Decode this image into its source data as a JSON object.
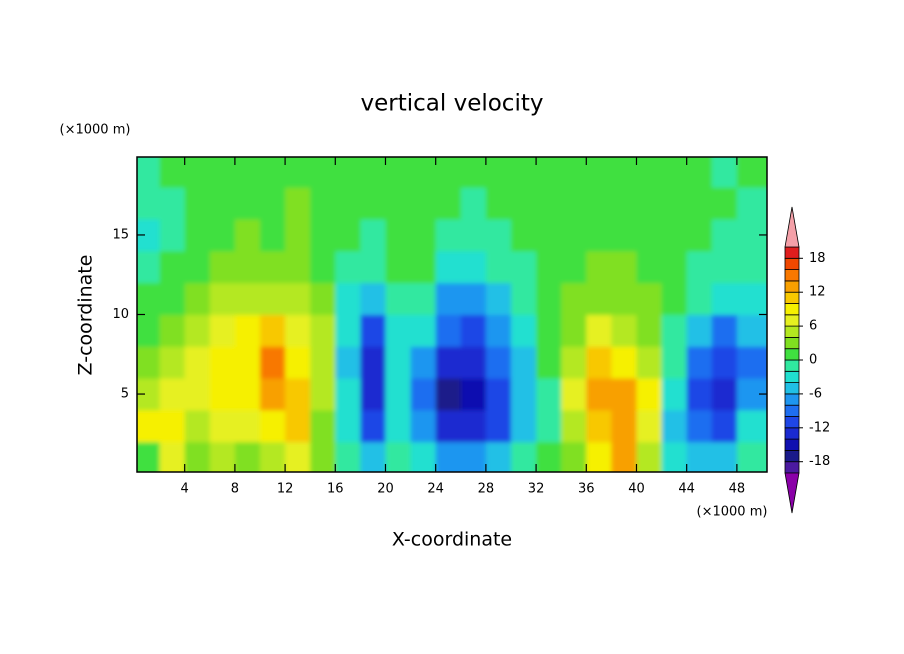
{
  "chart_data": {
    "type": "contour",
    "title": "vertical velocity",
    "xlabel": "X-coordinate",
    "ylabel": "Z-coordinate",
    "x_unit": "(×1000 m)",
    "y_unit": "(×1000 m)",
    "xlim": [
      0.2,
      50.4
    ],
    "ylim": [
      0.1,
      19.9
    ],
    "xticks": [
      4,
      8,
      12,
      16,
      20,
      24,
      28,
      32,
      36,
      40,
      44,
      48
    ],
    "yticks": [
      5,
      10,
      15
    ],
    "x": [
      1,
      3,
      5,
      7,
      9,
      11,
      13,
      15,
      17,
      19,
      21,
      23,
      25,
      27,
      29,
      31,
      33,
      35,
      37,
      39,
      41,
      43,
      45,
      47,
      49
    ],
    "y": [
      1,
      3,
      5,
      7,
      9,
      11,
      13,
      15,
      17,
      19
    ],
    "z": [
      [
        1,
        7,
        3,
        4,
        3,
        5,
        6,
        3,
        -1,
        -6,
        -1,
        -4,
        -8,
        -8,
        -6,
        -2,
        0,
        3,
        9,
        12,
        5,
        -4,
        -6,
        -6,
        -2
      ],
      [
        8,
        9,
        5,
        7,
        6,
        8,
        10,
        3,
        -3,
        -11,
        -3,
        -8,
        -13,
        -14,
        -11,
        -5,
        -1,
        5,
        11,
        13,
        7,
        -6,
        -10,
        -12,
        -4
      ],
      [
        5,
        6,
        7,
        8,
        9,
        12,
        11,
        5,
        -4,
        -13,
        -4,
        -10,
        -17,
        -15,
        -12,
        -6,
        -1,
        6,
        12,
        12,
        8,
        -3,
        -11,
        -13,
        -8
      ],
      [
        2,
        4,
        6,
        8,
        9,
        14,
        9,
        4,
        -5,
        -14,
        -4,
        -7,
        -14,
        -14,
        -10,
        -5,
        0,
        5,
        10,
        9,
        5,
        -2,
        -9,
        -12,
        -9
      ],
      [
        1,
        2,
        4,
        6,
        8,
        10,
        7,
        4,
        -4,
        -12,
        -3,
        -4,
        -10,
        -11,
        -7,
        -3,
        0,
        3,
        6,
        5,
        3,
        -1,
        -5,
        -9,
        -6
      ],
      [
        0,
        1,
        2,
        4,
        5,
        5,
        4,
        2,
        -3,
        -6,
        -1,
        -2,
        -7,
        -8,
        -5,
        -2,
        0,
        2,
        3,
        3,
        2,
        0,
        -2,
        -4,
        -3
      ],
      [
        -2,
        0,
        1,
        2,
        3,
        2,
        2,
        1,
        -1,
        -2,
        1,
        0,
        -3,
        -4,
        -2,
        -1,
        0,
        1,
        2,
        2,
        1,
        0,
        -1,
        -2,
        -2
      ],
      [
        -3,
        -1,
        0,
        1,
        2,
        1,
        2,
        1,
        0,
        -1,
        1,
        1,
        -1,
        -2,
        -1,
        0,
        0,
        1,
        1,
        1,
        1,
        0,
        0,
        -1,
        -1
      ],
      [
        -2,
        -1,
        0,
        1,
        1,
        1,
        2,
        1,
        0,
        0,
        0,
        1,
        0,
        -1,
        0,
        1,
        0,
        0,
        1,
        1,
        0,
        0,
        0,
        0,
        -1
      ],
      [
        -1,
        0,
        0,
        1,
        1,
        0,
        1,
        0,
        0,
        0,
        1,
        1,
        0,
        0,
        1,
        0,
        0,
        0,
        1,
        0,
        0,
        0,
        0,
        -1,
        0
      ]
    ],
    "levels": [
      -20,
      -18,
      -16,
      -14,
      -12,
      -10,
      -8,
      -6,
      -4,
      -2,
      0,
      2,
      4,
      6,
      8,
      10,
      12,
      14,
      16,
      18,
      20
    ],
    "colors": [
      "#8a00a8",
      "#4b1aa0",
      "#1a1a8a",
      "#1010b0",
      "#1a2ad0",
      "#1e46e6",
      "#1e6ef0",
      "#1e96f0",
      "#20c0e6",
      "#20e0d0",
      "#30e8a0",
      "#40e040",
      "#80e020",
      "#b4e820",
      "#e6f020",
      "#f6f000",
      "#f8c800",
      "#f8a000",
      "#f87800",
      "#f04800",
      "#e01e1e",
      "#f4a0a8"
    ],
    "colorbar_ticks": [
      18,
      12,
      6,
      0,
      -6,
      -12,
      -18
    ]
  }
}
